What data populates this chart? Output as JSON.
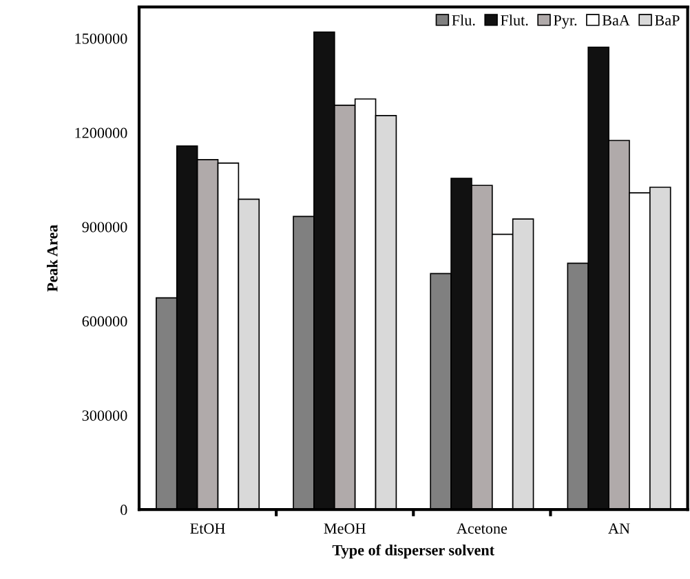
{
  "chart_data": {
    "type": "bar",
    "xlabel": "Type of disperser solvent",
    "ylabel": "Peak Area",
    "categories": [
      "EtOH",
      "MeOH",
      "Acetone",
      "AN"
    ],
    "series": [
      {
        "name": "Flu.",
        "color": "#808080",
        "values": [
          674000,
          933000,
          751000,
          784000
        ]
      },
      {
        "name": "Flut.",
        "color": "#111111",
        "values": [
          1157000,
          1520000,
          1054000,
          1472000
        ]
      },
      {
        "name": "Pyr.",
        "color": "#b0aaaa",
        "values": [
          1114000,
          1287000,
          1032000,
          1175000
        ]
      },
      {
        "name": "BaA",
        "color": "#ffffff",
        "values": [
          1103000,
          1307000,
          876000,
          1008000
        ]
      },
      {
        "name": "BaP",
        "color": "#d9d9d9",
        "values": [
          988000,
          1254000,
          925000,
          1026000
        ]
      }
    ],
    "ylim": [
      0,
      1600000
    ],
    "yticks": [
      0,
      300000,
      600000,
      900000,
      1200000,
      1500000
    ],
    "legend": "top right",
    "grid": false
  }
}
